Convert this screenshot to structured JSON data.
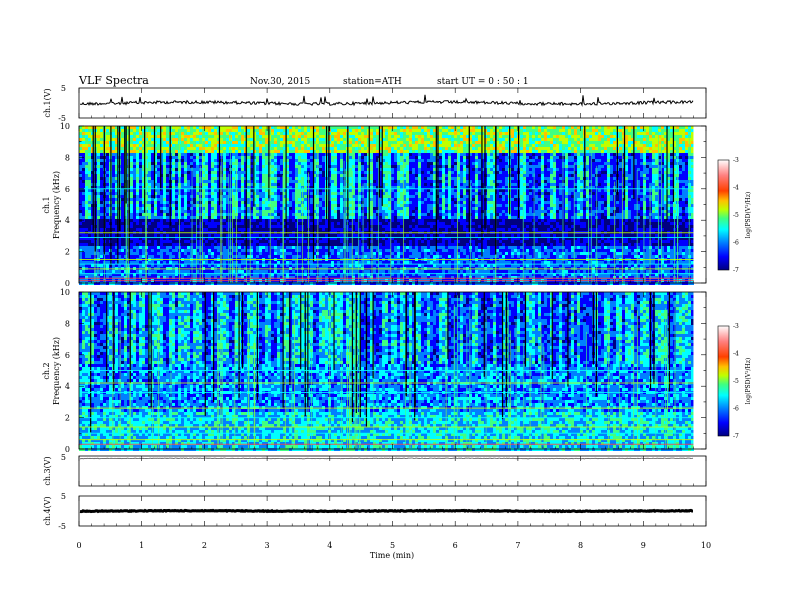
{
  "header": {
    "title": "VLF  Spectra",
    "date": "Nov.30, 2015",
    "station": "station=ATH",
    "start": "start  UT =   0  : 50 : 1"
  },
  "chart_data": [
    {
      "type": "line",
      "ylabel": "ch.1(V)",
      "ylim": [
        -5,
        5
      ],
      "yticks": [
        "5",
        "-5"
      ],
      "xlim": [
        0,
        10
      ],
      "trace_level_approx": 0,
      "duration_min": 9.8
    },
    {
      "type": "heatmap",
      "ylabel": "ch.1\nFrequency  (kHz)",
      "ylabel_lines": [
        "ch.1",
        "Frequency  (kHz)"
      ],
      "ylim": [
        0,
        10
      ],
      "yticks": [
        "0",
        "2",
        "4",
        "6",
        "8",
        "10"
      ],
      "colorbar": {
        "label": "log(PSD(V²/Hz)",
        "range": [
          -7,
          -3
        ],
        "ticks": [
          "-3",
          "-4",
          "-5",
          "-6",
          "-7"
        ],
        "colors": [
          "#000080",
          "#0000ff",
          "#0080ff",
          "#00ffff",
          "#40ff80",
          "#c0ff00",
          "#ffc000",
          "#ff4000",
          "#ff8080",
          "#ffffff"
        ]
      },
      "lines_khz_approx": [
        0.15,
        0.3,
        0.6,
        0.9,
        1.2,
        1.5,
        2.9,
        3.2,
        6.0
      ]
    },
    {
      "type": "heatmap",
      "ylabel": "ch.2\nFrequency  (kHz)",
      "ylabel_lines": [
        "ch.2",
        "Frequency  (kHz)"
      ],
      "ylim": [
        0,
        10
      ],
      "yticks": [
        "0",
        "2",
        "4",
        "6",
        "8",
        "10"
      ],
      "colorbar": {
        "label": "log(PSD(V²/Hz)",
        "range": [
          -7,
          -3
        ],
        "ticks": [
          "-3",
          "-4",
          "-5",
          "-6",
          "-7"
        ],
        "colors": [
          "#000080",
          "#0000ff",
          "#0080ff",
          "#00ffff",
          "#40ff80",
          "#c0ff00",
          "#ffc000",
          "#ff4000",
          "#ff8080",
          "#ffffff"
        ]
      },
      "lines_khz_approx": [
        0.3,
        0.6,
        1.0,
        1.4,
        2.0,
        2.6,
        3.6,
        4.2,
        5.0
      ]
    },
    {
      "type": "line",
      "ylabel": "ch.3(V)",
      "ylim": [
        -5,
        5
      ],
      "yticks": [
        "5"
      ],
      "xlim": [
        0,
        10
      ],
      "trace_level_approx": 5
    },
    {
      "type": "line",
      "ylabel": "ch.4(V)",
      "ylim": [
        -5,
        5
      ],
      "yticks": [
        "5",
        "-5"
      ],
      "xlim": [
        0,
        10
      ],
      "trace_level_approx": 0
    }
  ],
  "x_axis": {
    "label": "Time  (min)",
    "ticks": [
      "0",
      "1",
      "2",
      "3",
      "4",
      "5",
      "6",
      "7",
      "8",
      "9",
      "10"
    ],
    "range": [
      0,
      10
    ]
  }
}
